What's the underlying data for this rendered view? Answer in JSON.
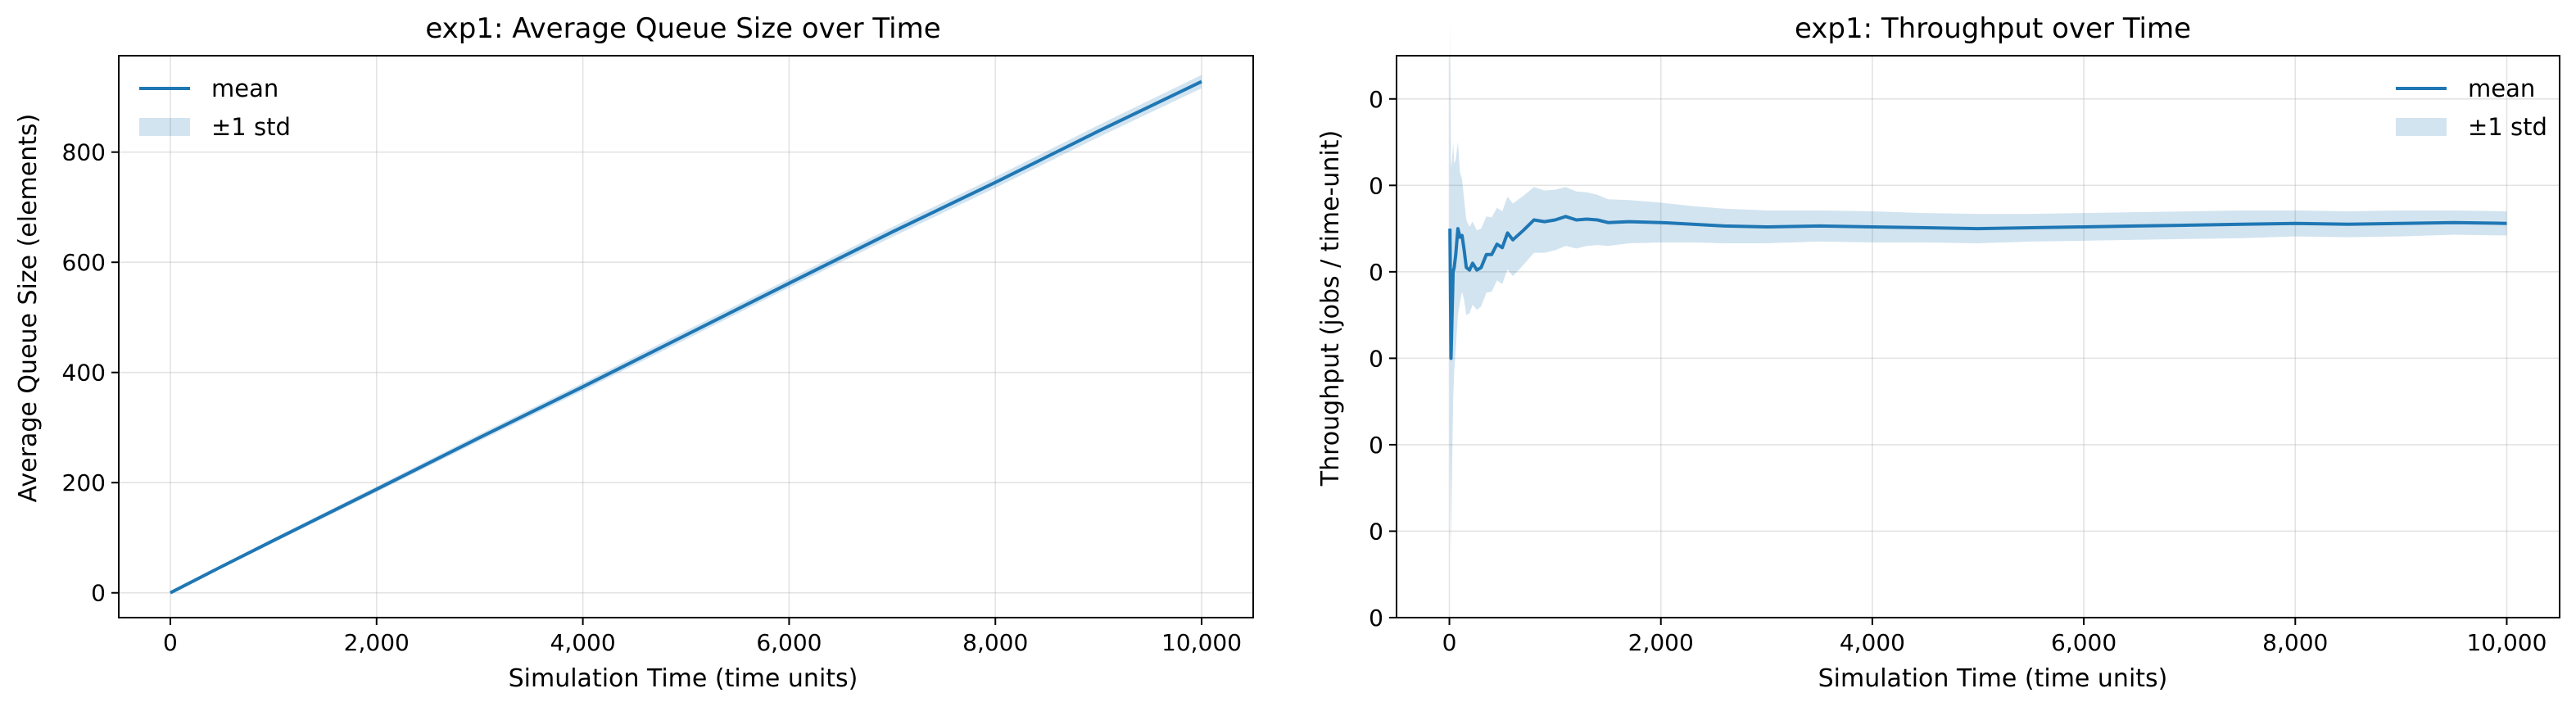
{
  "chart_data": [
    {
      "type": "line",
      "title": "exp1: Average Queue Size over Time",
      "xlabel": "Simulation Time (time units)",
      "ylabel": "Average Queue Size (elements)",
      "xlim": [
        -500,
        10500
      ],
      "ylim": [
        -45,
        975
      ],
      "xticks": [
        0,
        2000,
        4000,
        6000,
        8000,
        10000
      ],
      "xtick_labels": [
        "0",
        "2,000",
        "4,000",
        "6,000",
        "8,000",
        "10,000"
      ],
      "yticks": [
        0,
        200,
        400,
        600,
        800
      ],
      "ytick_labels": [
        "0",
        "200",
        "400",
        "600",
        "800"
      ],
      "grid": true,
      "legend": {
        "placement": "top-left",
        "entries": [
          "mean",
          "±1 std"
        ]
      },
      "series": [
        {
          "name": "mean",
          "color": "#1f77b4",
          "x": [
            0,
            500,
            1000,
            2000,
            3000,
            4000,
            5000,
            6000,
            7000,
            8000,
            9000,
            10000
          ],
          "y": [
            0,
            48,
            95,
            188,
            282,
            374,
            468,
            562,
            655,
            745,
            838,
            928
          ],
          "std": [
            1,
            3,
            4,
            5,
            6,
            7,
            8,
            8,
            9,
            10,
            11,
            12
          ]
        }
      ]
    },
    {
      "type": "line",
      "title": "exp1: Throughput over Time",
      "xlabel": "Simulation Time (time units)",
      "ylabel": "Throughput (jobs / time-unit)",
      "xlim": [
        -500,
        10500
      ],
      "ylim": [
        -0.6,
        0.05
      ],
      "xticks": [
        0,
        2000,
        4000,
        6000,
        8000,
        10000
      ],
      "xtick_labels": [
        "0",
        "2,000",
        "4,000",
        "6,000",
        "8,000",
        "10,000"
      ],
      "yticks": [
        0.0,
        -0.1,
        -0.2,
        -0.3,
        -0.4,
        -0.5,
        -0.6
      ],
      "ytick_labels": [
        "0",
        "0",
        "0",
        "0",
        "0",
        "0",
        "0"
      ],
      "grid": true,
      "legend": {
        "placement": "top-right",
        "entries": [
          "mean",
          "±1 std"
        ]
      },
      "series": [
        {
          "name": "mean",
          "color": "#1f77b4",
          "x": [
            5,
            15,
            25,
            35,
            45,
            60,
            80,
            100,
            120,
            140,
            160,
            190,
            220,
            260,
            300,
            350,
            400,
            450,
            500,
            550,
            600,
            700,
            800,
            900,
            1000,
            1100,
            1200,
            1300,
            1400,
            1500,
            1700,
            2000,
            2300,
            2600,
            3000,
            3500,
            4000,
            4500,
            5000,
            5500,
            6000,
            6500,
            7000,
            7500,
            8000,
            8500,
            9000,
            9500,
            10000
          ],
          "y": [
            -0.15,
            -0.3,
            -0.25,
            -0.2,
            -0.195,
            -0.18,
            -0.15,
            -0.16,
            -0.158,
            -0.175,
            -0.195,
            -0.198,
            -0.19,
            -0.198,
            -0.195,
            -0.18,
            -0.18,
            -0.168,
            -0.172,
            -0.155,
            -0.163,
            -0.152,
            -0.14,
            -0.142,
            -0.14,
            -0.136,
            -0.14,
            -0.139,
            -0.14,
            -0.143,
            -0.142,
            -0.143,
            -0.145,
            -0.147,
            -0.148,
            -0.147,
            -0.148,
            -0.149,
            -0.15,
            -0.149,
            -0.148,
            -0.147,
            -0.146,
            -0.145,
            -0.144,
            -0.145,
            -0.144,
            -0.143,
            -0.144
          ],
          "std": [
            0.25,
            0.22,
            0.18,
            0.15,
            0.12,
            0.11,
            0.1,
            0.075,
            0.065,
            0.058,
            0.055,
            0.05,
            0.048,
            0.046,
            0.045,
            0.044,
            0.043,
            0.042,
            0.042,
            0.042,
            0.042,
            0.04,
            0.038,
            0.036,
            0.035,
            0.034,
            0.033,
            0.031,
            0.029,
            0.027,
            0.025,
            0.023,
            0.021,
            0.02,
            0.019,
            0.018,
            0.018,
            0.017,
            0.017,
            0.016,
            0.016,
            0.016,
            0.016,
            0.016,
            0.015,
            0.015,
            0.015,
            0.014,
            0.014
          ]
        }
      ]
    }
  ]
}
